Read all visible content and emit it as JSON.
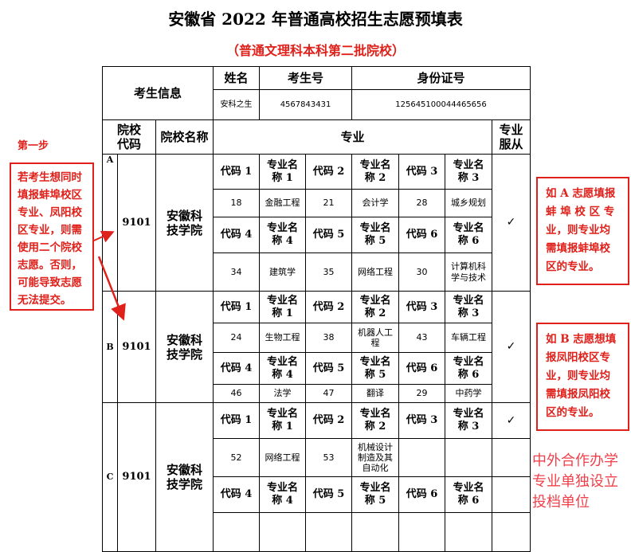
{
  "title": "安徽省 2022 年普通高校招生志愿预填表",
  "subtitle": "（普通文理科本科第二批院校）",
  "student": {
    "section_label": "考生信息",
    "name_label": "姓名",
    "exam_no_label": "考生号",
    "id_label": "身份证号",
    "name": "安科之生",
    "exam_no": "4567843431",
    "id": "125645100044465656"
  },
  "headers": {
    "school_code": "院校代码",
    "school_name": "院校名称",
    "major": "专业",
    "obey": "专业服从"
  },
  "code_labels": [
    "代码 1",
    "代码 2",
    "代码 3",
    "代码 4",
    "代码 5",
    "代码 6"
  ],
  "name_labels": [
    "专业名称 1",
    "专业名称 2",
    "专业名称 3",
    "专业名称 4",
    "专业名称 5",
    "专业名称 6"
  ],
  "sections": [
    {
      "letter": "A",
      "code": "9101",
      "name": "安徽科技学院",
      "obey": "✓",
      "majors": [
        {
          "code": "18",
          "name": "金融工程"
        },
        {
          "code": "21",
          "name": "会计学"
        },
        {
          "code": "28",
          "name": "城乡规划"
        },
        {
          "code": "34",
          "name": "建筑学"
        },
        {
          "code": "35",
          "name": "网络工程"
        },
        {
          "code": "30",
          "name": "计算机科学与技术"
        }
      ]
    },
    {
      "letter": "B",
      "code": "9101",
      "name": "安徽科技学院",
      "obey": "✓",
      "majors": [
        {
          "code": "24",
          "name": "生物工程"
        },
        {
          "code": "38",
          "name": "机器人工程"
        },
        {
          "code": "43",
          "name": "车辆工程"
        },
        {
          "code": "46",
          "name": "法学"
        },
        {
          "code": "47",
          "name": "翻译"
        },
        {
          "code": "29",
          "name": "中药学"
        }
      ]
    },
    {
      "letter": "C",
      "code": "9101",
      "name": "安徽科技学院",
      "obey": "✓",
      "majors": [
        {
          "code": "52",
          "name": "网络工程"
        },
        {
          "code": "53",
          "name": "机械设计制造及其自动化"
        },
        {
          "code": "",
          "name": ""
        },
        {
          "code": "",
          "name": ""
        },
        {
          "code": "",
          "name": ""
        },
        {
          "code": "",
          "name": ""
        }
      ]
    }
  ],
  "annotations": {
    "step": "第一步",
    "left_note": "若考生想同时填报蚌埠校区专业、凤阳校区专业，则需使用二个院校志愿。否则，可能导致志愿无法提交。",
    "a_note": "如 A 志愿填报蚌 埠 校 区 专业，则专业均需填报蚌埠校区的专业。",
    "b_note": "如 B 志愿想填报凤阳校区专业，则专业均需填报凤阳校区的专业。",
    "c_note": "中外合作办学专业单独设立投档单位",
    "accent_color": "#e0201a"
  }
}
